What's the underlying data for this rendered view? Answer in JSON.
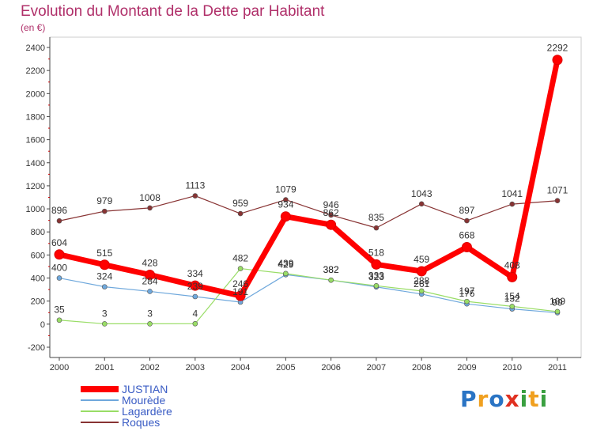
{
  "chart_data": {
    "type": "line",
    "title": "Evolution du Montant de la Dette par Habitant",
    "subtitle": "(en €)",
    "x": [
      "2000",
      "2001",
      "2002",
      "2003",
      "2004",
      "2005",
      "2006",
      "2007",
      "2008",
      "2009",
      "2010",
      "2011"
    ],
    "ylim": [
      -200,
      2400
    ],
    "yticks": [
      -200,
      0,
      200,
      400,
      600,
      800,
      1000,
      1200,
      1400,
      1600,
      1800,
      2000,
      2200,
      2400
    ],
    "grid": false,
    "legend_position": "bottom-left",
    "series": [
      {
        "name": "JUSTIAN",
        "color": "#ff0000",
        "values": [
          604,
          515,
          428,
          334,
          246,
          934,
          862,
          518,
          459,
          668,
          408,
          2292
        ]
      },
      {
        "name": "Mourède",
        "color": "#6fa8dc",
        "values": [
          400,
          324,
          284,
          239,
          191,
          429,
          382,
          323,
          261,
          176,
          132,
          99
        ]
      },
      {
        "name": "Lagardère",
        "color": "#99dd66",
        "values": [
          35,
          3,
          3,
          4,
          482,
          439,
          382,
          333,
          288,
          197,
          154,
          109
        ]
      },
      {
        "name": "Roques",
        "color": "#883333",
        "values": [
          896,
          979,
          1008,
          1113,
          959,
          1079,
          946,
          835,
          1043,
          897,
          1041,
          1071
        ]
      }
    ]
  },
  "logo": {
    "text": "Proxiti",
    "letters": [
      {
        "ch": "P",
        "color": "#2a74c4"
      },
      {
        "ch": "r",
        "color": "#f0a020"
      },
      {
        "ch": "o",
        "color": "#2a74c4"
      },
      {
        "ch": "x",
        "color": "#e03020"
      },
      {
        "ch": "i",
        "color": "#3aa040"
      },
      {
        "ch": "t",
        "color": "#f0a020"
      },
      {
        "ch": "i",
        "color": "#3aa040"
      }
    ]
  }
}
